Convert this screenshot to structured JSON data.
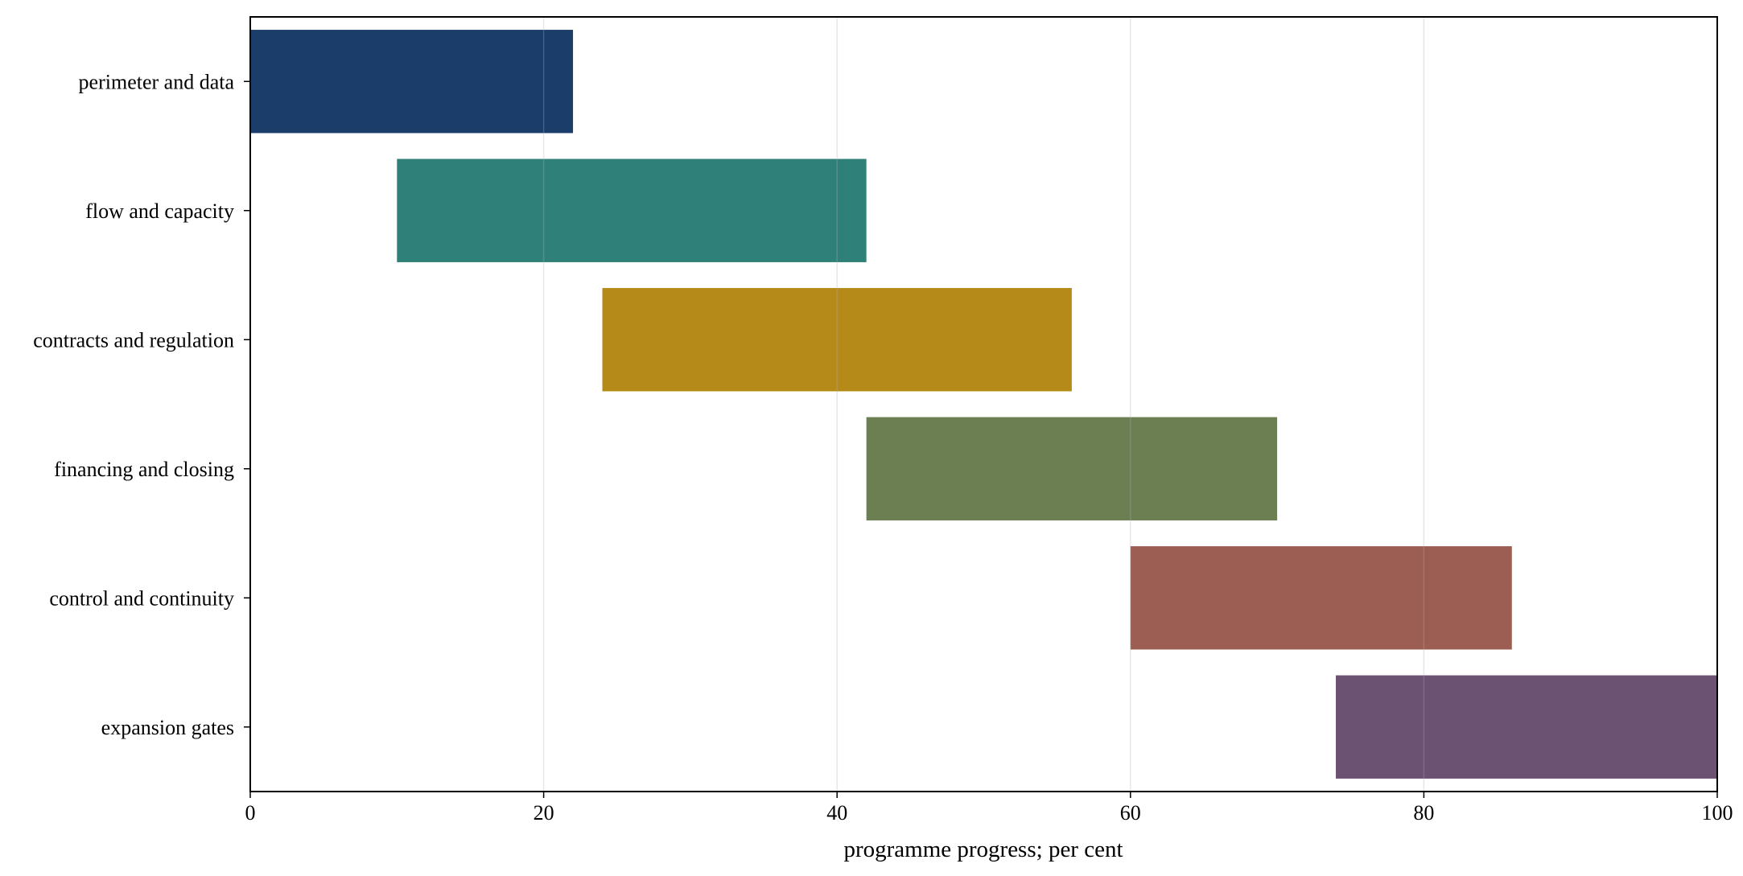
{
  "chart_data": {
    "type": "bar",
    "orientation": "horizontal",
    "subtype": "gantt",
    "title": "",
    "xlabel": "programme progress; per cent",
    "ylabel": "",
    "xlim": [
      0,
      100
    ],
    "xticks": [
      0,
      20,
      40,
      60,
      80,
      100
    ],
    "grid": "vertical",
    "legend": "none",
    "tasks": [
      {
        "label": "perimeter and data",
        "start": 0,
        "end": 22,
        "color": "#1a3d6a"
      },
      {
        "label": "flow and capacity",
        "start": 10,
        "end": 42,
        "color": "#2f8078"
      },
      {
        "label": "contracts and regulation",
        "start": 24,
        "end": 56,
        "color": "#b58a19"
      },
      {
        "label": "financing and closing",
        "start": 42,
        "end": 70,
        "color": "#6b7f52"
      },
      {
        "label": "control and continuity",
        "start": 60,
        "end": 86,
        "color": "#9c5e52"
      },
      {
        "label": "expansion gates",
        "start": 74,
        "end": 100,
        "color": "#6b5172"
      }
    ]
  }
}
